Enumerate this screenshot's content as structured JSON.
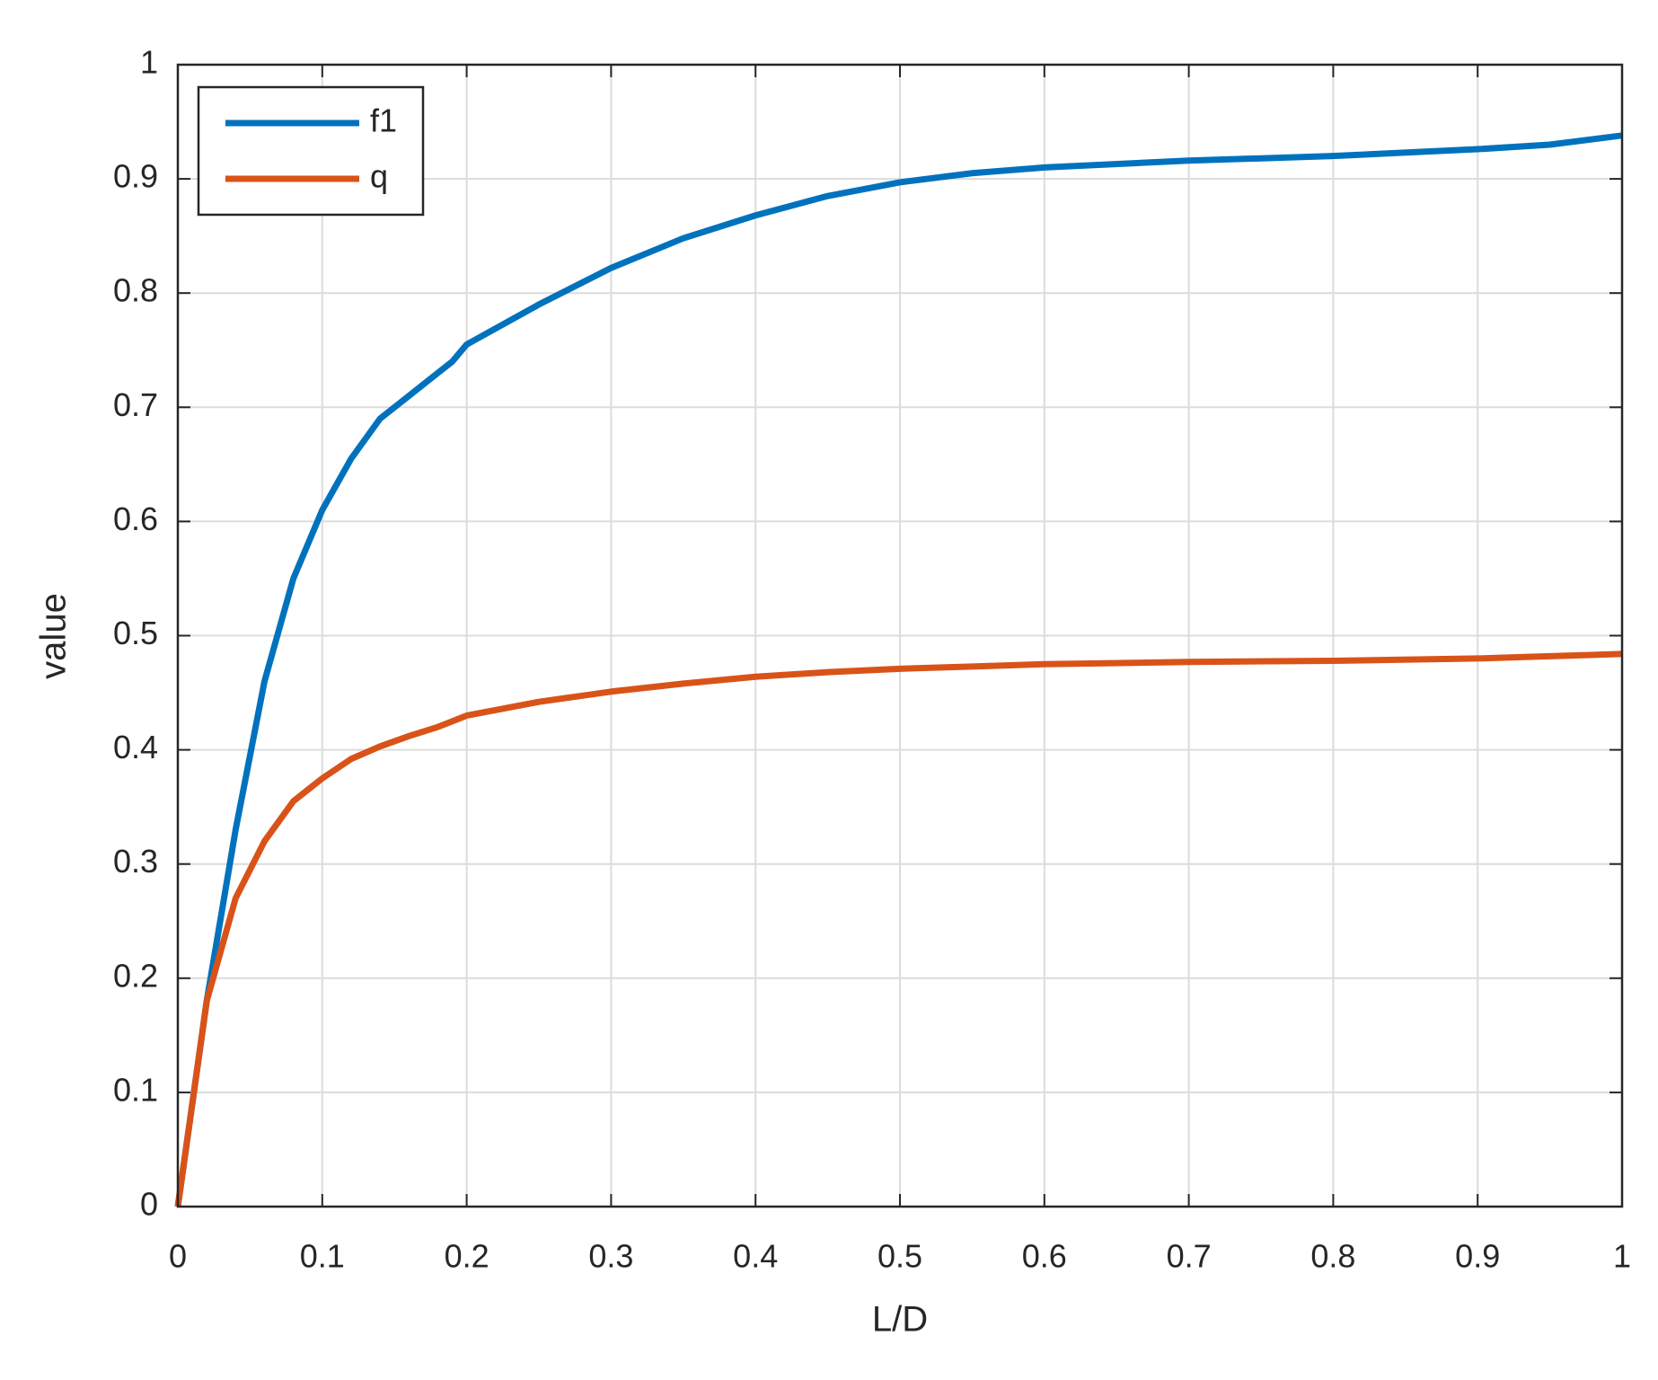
{
  "chart_data": {
    "type": "line",
    "x": [
      0,
      0.02,
      0.04,
      0.06,
      0.08,
      0.1,
      0.12,
      0.14,
      0.16,
      0.18,
      0.19,
      0.2,
      0.25,
      0.3,
      0.35,
      0.4,
      0.45,
      0.5,
      0.55,
      0.6,
      0.7,
      0.8,
      0.9,
      0.95,
      1
    ],
    "series": [
      {
        "name": "f1",
        "color": "#0072bd",
        "values": [
          0,
          0.18,
          0.33,
          0.46,
          0.55,
          0.61,
          0.655,
          0.69,
          0.71,
          0.73,
          0.74,
          0.755,
          0.79,
          0.822,
          0.848,
          0.868,
          0.885,
          0.897,
          0.905,
          0.91,
          0.916,
          0.92,
          0.926,
          0.93,
          0.938
        ]
      },
      {
        "name": "q",
        "color": "#d95319",
        "values": [
          0,
          0.18,
          0.27,
          0.32,
          0.355,
          0.375,
          0.392,
          0.403,
          0.412,
          0.42,
          0.425,
          0.43,
          0.442,
          0.451,
          0.458,
          0.464,
          0.468,
          0.471,
          0.473,
          0.475,
          0.477,
          0.478,
          0.48,
          0.482,
          0.484
        ]
      }
    ],
    "x_label": "L/D",
    "y_label": "value",
    "xlim": [
      0,
      1
    ],
    "ylim": [
      0,
      1
    ],
    "xticks": [
      0,
      0.1,
      0.2,
      0.3,
      0.4,
      0.5,
      0.6,
      0.7,
      0.8,
      0.9,
      1
    ],
    "yticks": [
      0,
      0.1,
      0.2,
      0.3,
      0.4,
      0.5,
      0.6,
      0.7,
      0.8,
      0.9,
      1
    ],
    "grid": true,
    "legend": "top-left"
  }
}
